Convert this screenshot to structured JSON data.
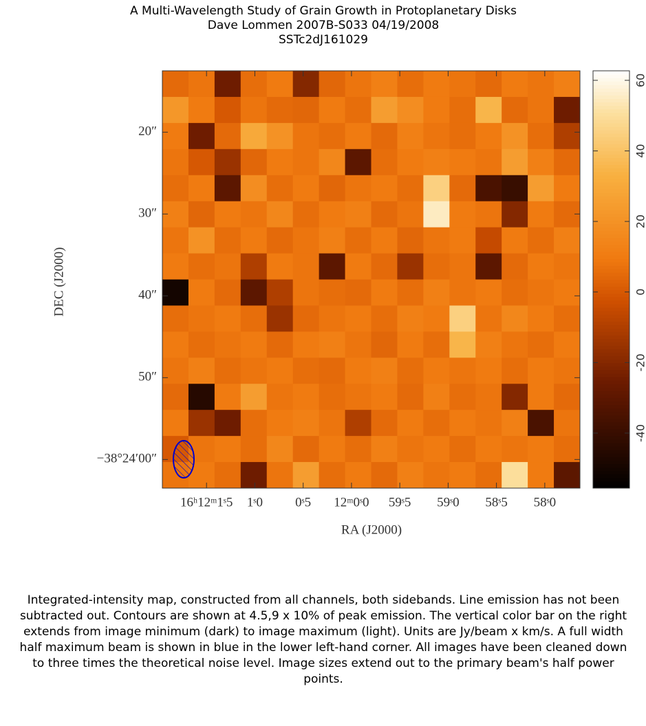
{
  "chart_data": {
    "type": "heatmap",
    "title": "A Multi-Wavelength Study of Grain Growth in Protoplanetary Disks",
    "subtitle": "Dave Lommen   2007B-S033   04/19/2008",
    "source_name": "SSTc2dJ161029",
    "x_label": "RA (J2000)",
    "y_label": "DEC (J2000)",
    "caption": "Integrated-intensity map, constructed from all channels, both sidebands.  Line emission has not been subtracted out.  Contours are shown at 4.5,9 x 10% of peak emission.  The vertical color bar on the right extends from image minimum (dark) to image maximum (light).  Units are Jy/beam x km/s.  A full width half maximum beam is shown in blue in the lower left-hand corner.  All images have been cleaned down to three times the theoretical noise level.  Image sizes extend out to the primary beam's half power points.",
    "xlim": [
      1.957,
      -2.364
    ],
    "xticks": [
      {
        "value": 1.5,
        "label": "16ʰ12ᵐ1ˢ5"
      },
      {
        "value": 1.0,
        "label": "1ˢ0"
      },
      {
        "value": 0.5,
        "label": "0ˢ5"
      },
      {
        "value": 0,
        "label": "12ᵐ0ˢ0"
      },
      {
        "value": -0.5,
        "label": "59ˢ5"
      },
      {
        "value": -1.0,
        "label": "59ˢ0"
      },
      {
        "value": -1.5,
        "label": "58ˢ5"
      },
      {
        "value": -2.0,
        "label": "58ˢ0"
      }
    ],
    "ylim": [
      -3.5,
      47.5
    ],
    "yticks": [
      {
        "value": 40,
        "label": "20″"
      },
      {
        "value": 30,
        "label": "30″"
      },
      {
        "value": 20,
        "label": "40″"
      },
      {
        "value": 10,
        "label": "50″"
      },
      {
        "value": 0,
        "label": "−38°24′00″"
      }
    ],
    "clim": [
      -55.6,
      62.7
    ],
    "cticks": [
      -40,
      -20,
      0,
      20,
      40,
      60
    ],
    "z": [
      [
        5,
        8,
        -25,
        6,
        10,
        -20,
        4,
        8,
        12,
        6,
        10,
        8,
        5,
        10,
        8,
        12
      ],
      [
        22,
        10,
        0,
        8,
        5,
        4,
        10,
        6,
        25,
        18,
        10,
        6,
        35,
        5,
        8,
        -25
      ],
      [
        10,
        -25,
        5,
        30,
        20,
        8,
        6,
        10,
        5,
        12,
        8,
        6,
        10,
        20,
        6,
        -10
      ],
      [
        8,
        0,
        -15,
        4,
        10,
        8,
        15,
        -30,
        6,
        10,
        12,
        10,
        8,
        25,
        12,
        5
      ],
      [
        6,
        10,
        -30,
        18,
        6,
        10,
        4,
        8,
        10,
        6,
        45,
        5,
        -35,
        -40,
        25,
        10
      ],
      [
        12,
        4,
        10,
        8,
        15,
        6,
        10,
        12,
        5,
        8,
        55,
        10,
        8,
        -20,
        10,
        5
      ],
      [
        8,
        20,
        6,
        10,
        5,
        8,
        12,
        6,
        10,
        4,
        8,
        10,
        -5,
        10,
        6,
        12
      ],
      [
        10,
        6,
        8,
        -10,
        10,
        8,
        -30,
        10,
        5,
        -15,
        6,
        8,
        -30,
        5,
        10,
        8
      ],
      [
        -50,
        10,
        5,
        -30,
        -10,
        8,
        6,
        5,
        10,
        6,
        12,
        8,
        10,
        6,
        8,
        10
      ],
      [
        6,
        8,
        10,
        6,
        -15,
        5,
        8,
        10,
        6,
        12,
        10,
        45,
        8,
        15,
        10,
        6
      ],
      [
        10,
        6,
        8,
        10,
        5,
        10,
        12,
        8,
        4,
        10,
        6,
        35,
        12,
        8,
        6,
        10
      ],
      [
        8,
        12,
        6,
        8,
        10,
        6,
        5,
        10,
        12,
        6,
        10,
        8,
        10,
        6,
        10,
        8
      ],
      [
        5,
        -45,
        10,
        25,
        8,
        10,
        6,
        8,
        10,
        5,
        12,
        6,
        8,
        -20,
        10,
        5
      ],
      [
        10,
        -15,
        -25,
        6,
        10,
        12,
        8,
        -10,
        5,
        10,
        6,
        10,
        8,
        12,
        -35,
        8
      ],
      [
        0,
        8,
        10,
        6,
        15,
        5,
        10,
        6,
        12,
        8,
        10,
        6,
        10,
        8,
        10,
        6
      ],
      [
        8,
        10,
        6,
        -25,
        8,
        25,
        6,
        10,
        5,
        12,
        8,
        10,
        6,
        50,
        10,
        -30
      ]
    ]
  }
}
